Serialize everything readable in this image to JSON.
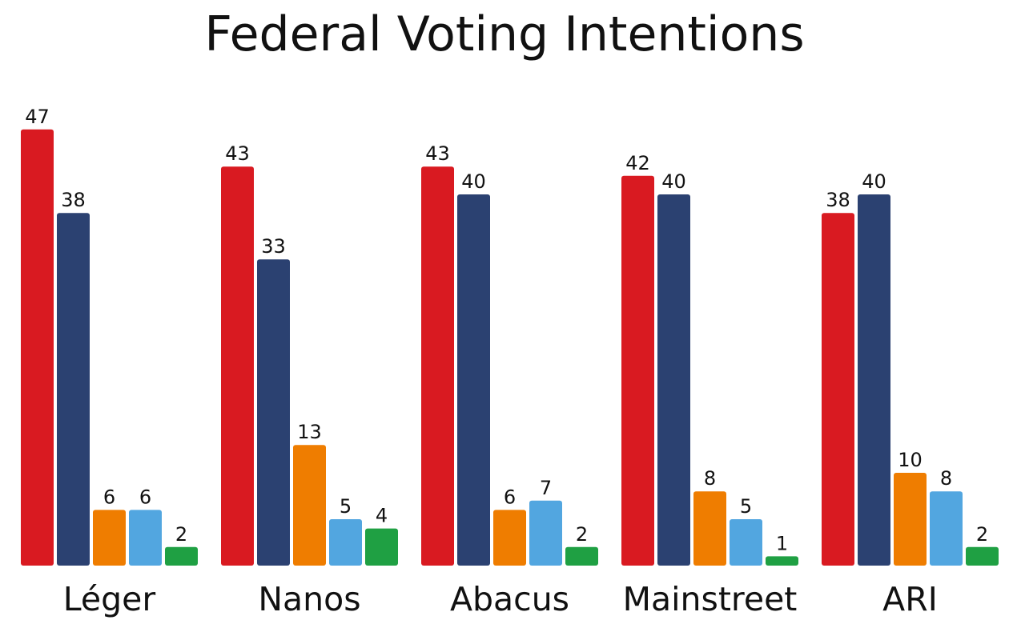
{
  "chart_data": {
    "type": "bar",
    "title": "Federal Voting Intentions",
    "categories": [
      "Léger",
      "Nanos",
      "Abacus",
      "Mainstreet",
      "ARI"
    ],
    "series": [
      {
        "color": "#d91a21",
        "values": [
          47,
          43,
          43,
          42,
          38
        ]
      },
      {
        "color": "#2b4171",
        "values": [
          38,
          33,
          40,
          40,
          40
        ]
      },
      {
        "color": "#ef7d00",
        "values": [
          6,
          13,
          6,
          8,
          10
        ]
      },
      {
        "color": "#52a6e0",
        "values": [
          6,
          5,
          7,
          5,
          8
        ]
      },
      {
        "color": "#1fa043",
        "values": [
          2,
          4,
          2,
          1,
          2
        ]
      }
    ],
    "value_labels": true,
    "ylim": [
      0,
      47
    ],
    "grid": false,
    "legend": "none"
  }
}
